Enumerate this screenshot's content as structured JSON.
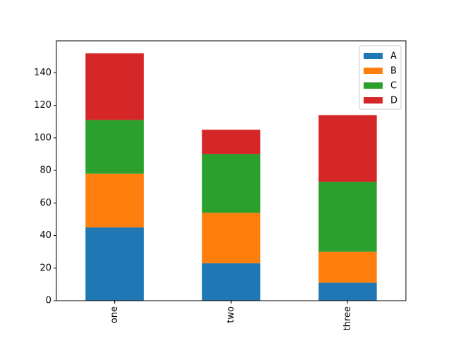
{
  "chart_data": {
    "type": "bar",
    "stacked": true,
    "categories": [
      "one",
      "two",
      "three"
    ],
    "series": [
      {
        "name": "A",
        "values": [
          45,
          23,
          11
        ],
        "color": "#1f77b4"
      },
      {
        "name": "B",
        "values": [
          33,
          31,
          19
        ],
        "color": "#ff7f0e"
      },
      {
        "name": "C",
        "values": [
          33,
          36,
          43
        ],
        "color": "#2ca02c"
      },
      {
        "name": "D",
        "values": [
          41,
          15,
          41
        ],
        "color": "#d62728"
      }
    ],
    "yticks": [
      0,
      20,
      40,
      60,
      80,
      100,
      120,
      140
    ],
    "ylim": [
      0,
      159.6
    ],
    "xtick_rotation": 90,
    "legend_position": "top-right",
    "grid": false
  }
}
